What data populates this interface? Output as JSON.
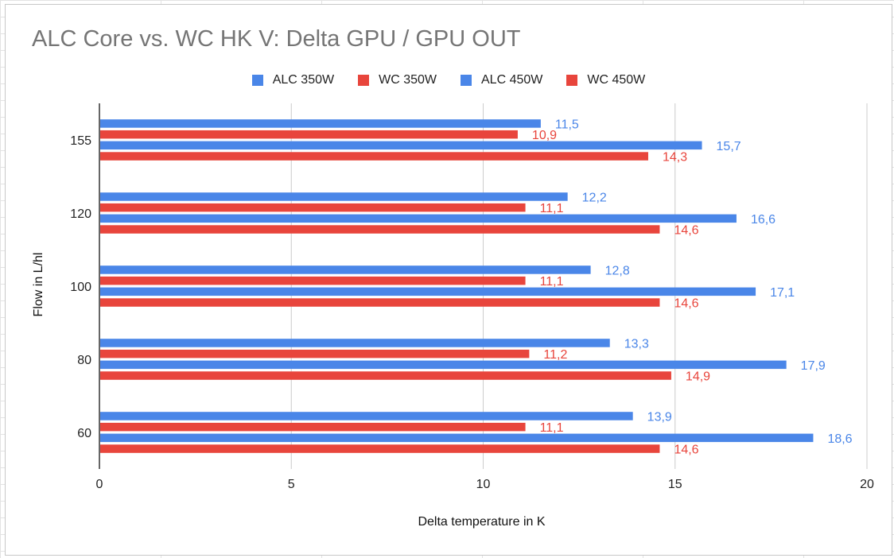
{
  "chart_data": {
    "type": "bar",
    "orientation": "horizontal",
    "title": "ALC Core vs. WC HK V: Delta GPU / GPU OUT",
    "xlabel": "Delta temperature in K",
    "ylabel": "Flow in L/hl",
    "categories": [
      "155",
      "120",
      "100",
      "80",
      "60"
    ],
    "xlim": [
      0,
      20
    ],
    "xticks": [
      "0",
      "5",
      "10",
      "15",
      "20"
    ],
    "grid": "vertical",
    "legend_position": "top",
    "series": [
      {
        "name": "ALC 350W",
        "color": "#4a86e8",
        "values": [
          11.5,
          12.2,
          12.8,
          13.3,
          13.9
        ],
        "labels": [
          "11,5",
          "12,2",
          "12,8",
          "13,3",
          "13,9"
        ]
      },
      {
        "name": "WC 350W",
        "color": "#e8453c",
        "values": [
          10.9,
          11.1,
          11.1,
          11.2,
          11.1
        ],
        "labels": [
          "10,9",
          "11,1",
          "11,1",
          "11,2",
          "11,1"
        ]
      },
      {
        "name": "ALC 450W",
        "color": "#4a86e8",
        "values": [
          15.7,
          16.6,
          17.1,
          17.9,
          18.6
        ],
        "labels": [
          "15,7",
          "16,6",
          "17,1",
          "17,9",
          "18,6"
        ]
      },
      {
        "name": "WC 450W",
        "color": "#e8453c",
        "values": [
          14.3,
          14.6,
          14.6,
          14.9,
          14.6
        ],
        "labels": [
          "14,3",
          "14,6",
          "14,6",
          "14,9",
          "14,6"
        ]
      }
    ]
  }
}
